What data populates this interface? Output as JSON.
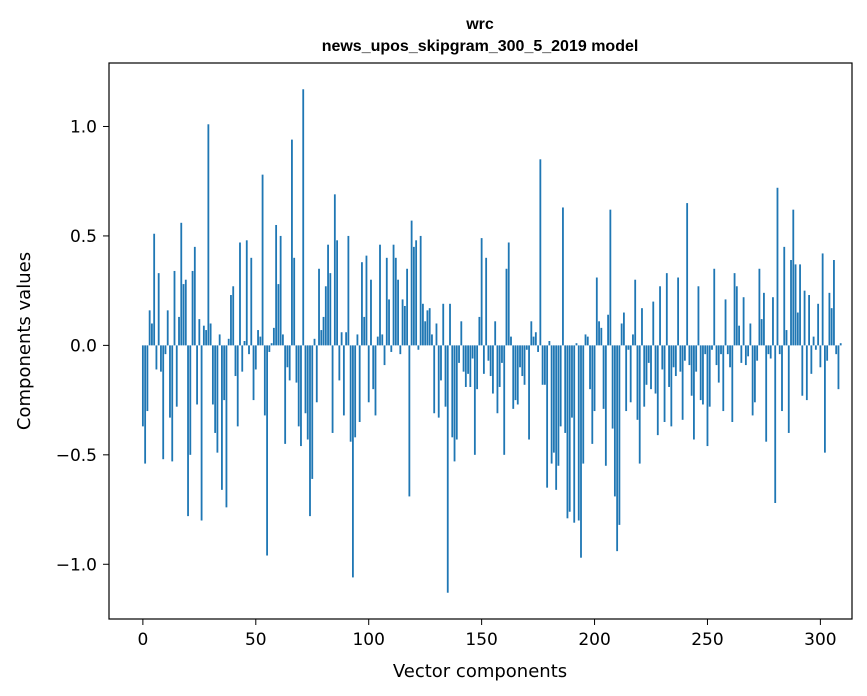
{
  "chart_data": {
    "type": "bar",
    "title": "wrc",
    "subtitle": "news_upos_skipgram_300_5_2019 model",
    "xlabel": "Vector components",
    "ylabel": "Components values",
    "xlim": [
      -15,
      314
    ],
    "ylim": [
      -1.25,
      1.29
    ],
    "bar_color": "#1f77b4",
    "x_ticks": [
      0,
      50,
      100,
      150,
      200,
      250,
      300
    ],
    "x_tick_labels": [
      "0",
      "50",
      "100",
      "150",
      "200",
      "250",
      "300"
    ],
    "y_ticks": [
      -1.0,
      -0.5,
      0.0,
      0.5,
      1.0
    ],
    "y_tick_labels": [
      "−1.0",
      "−0.5",
      "0.0",
      "0.5",
      "1.0"
    ],
    "values": [
      -0.37,
      -0.54,
      -0.3,
      0.16,
      0.1,
      0.51,
      -0.11,
      0.33,
      -0.12,
      -0.52,
      -0.04,
      0.16,
      -0.33,
      -0.53,
      0.34,
      -0.28,
      0.13,
      0.56,
      0.28,
      0.3,
      -0.78,
      -0.5,
      0.34,
      0.45,
      -0.27,
      0.12,
      -0.8,
      0.09,
      0.07,
      1.01,
      0.1,
      -0.27,
      -0.4,
      -0.49,
      0.05,
      -0.66,
      -0.25,
      -0.74,
      0.03,
      0.23,
      0.27,
      -0.14,
      -0.37,
      0.47,
      -0.12,
      0.02,
      0.48,
      -0.04,
      0.4,
      -0.25,
      -0.11,
      0.07,
      0.04,
      0.78,
      -0.32,
      -0.96,
      -0.03,
      0.01,
      0.08,
      0.55,
      0.28,
      0.5,
      0.05,
      -0.45,
      -0.1,
      -0.16,
      0.94,
      0.4,
      -0.17,
      -0.37,
      -0.46,
      1.17,
      -0.31,
      -0.43,
      -0.78,
      -0.61,
      0.03,
      -0.26,
      0.35,
      0.07,
      0.13,
      0.27,
      0.46,
      0.33,
      -0.4,
      0.69,
      0.48,
      -0.16,
      0.06,
      -0.32,
      0.06,
      0.5,
      -0.44,
      -1.06,
      -0.42,
      0.05,
      -0.35,
      0.38,
      0.13,
      0.41,
      -0.26,
      0.3,
      -0.2,
      -0.32,
      0.04,
      0.46,
      0.05,
      -0.09,
      0.4,
      0.21,
      -0.03,
      0.46,
      0.4,
      0.3,
      -0.04,
      0.21,
      0.18,
      0.35,
      -0.69,
      0.57,
      0.45,
      0.48,
      -0.02,
      0.5,
      0.19,
      0.11,
      0.16,
      0.17,
      0.05,
      -0.31,
      0.1,
      -0.33,
      -0.16,
      0.19,
      -0.28,
      -1.13,
      0.19,
      -0.42,
      -0.53,
      -0.43,
      -0.08,
      0.11,
      -0.12,
      -0.19,
      -0.13,
      -0.19,
      -0.06,
      -0.5,
      -0.2,
      0.13,
      0.49,
      -0.13,
      0.4,
      -0.07,
      -0.14,
      -0.22,
      0.11,
      -0.31,
      -0.19,
      -0.08,
      -0.5,
      0.35,
      0.47,
      0.04,
      -0.29,
      -0.25,
      -0.27,
      -0.1,
      -0.14,
      -0.18,
      -0.02,
      -0.43,
      0.11,
      0.04,
      0.06,
      -0.03,
      0.85,
      -0.18,
      -0.18,
      -0.65,
      0.02,
      -0.54,
      -0.49,
      -0.66,
      -0.55,
      -0.37,
      0.63,
      -0.4,
      -0.79,
      -0.76,
      -0.33,
      -0.81,
      0.01,
      -0.8,
      -0.97,
      -0.54,
      0.05,
      0.04,
      -0.2,
      -0.45,
      -0.3,
      0.31,
      0.11,
      0.08,
      -0.29,
      -0.55,
      0.14,
      0.62,
      -0.38,
      -0.69,
      -0.94,
      -0.82,
      0.1,
      0.15,
      -0.3,
      -0.02,
      -0.26,
      0.05,
      0.3,
      -0.34,
      -0.54,
      0.17,
      -0.28,
      -0.18,
      -0.08,
      -0.2,
      0.2,
      -0.22,
      -0.41,
      0.27,
      -0.11,
      -0.35,
      0.33,
      -0.19,
      -0.37,
      -0.1,
      -0.14,
      0.31,
      -0.12,
      -0.34,
      -0.07,
      0.65,
      -0.09,
      -0.23,
      -0.43,
      -0.12,
      0.27,
      -0.25,
      -0.27,
      -0.04,
      -0.46,
      -0.28,
      -0.02,
      0.35,
      -0.09,
      -0.17,
      -0.04,
      -0.3,
      0.21,
      -0.04,
      -0.1,
      -0.35,
      0.33,
      0.27,
      0.09,
      -0.08,
      0.22,
      -0.09,
      -0.05,
      0.1,
      -0.32,
      -0.26,
      -0.07,
      0.35,
      0.12,
      0.24,
      -0.44,
      -0.04,
      -0.06,
      0.22,
      -0.72,
      0.72,
      -0.04,
      -0.3,
      0.45,
      0.07,
      -0.4,
      0.39,
      0.62,
      0.37,
      0.15,
      0.37,
      -0.23,
      0.25,
      -0.25,
      0.23,
      -0.13,
      0.04,
      -0.02,
      0.19,
      -0.1,
      0.42,
      -0.49,
      -0.07,
      0.24,
      0.17,
      0.39,
      -0.04,
      -0.2,
      0.01
    ]
  }
}
